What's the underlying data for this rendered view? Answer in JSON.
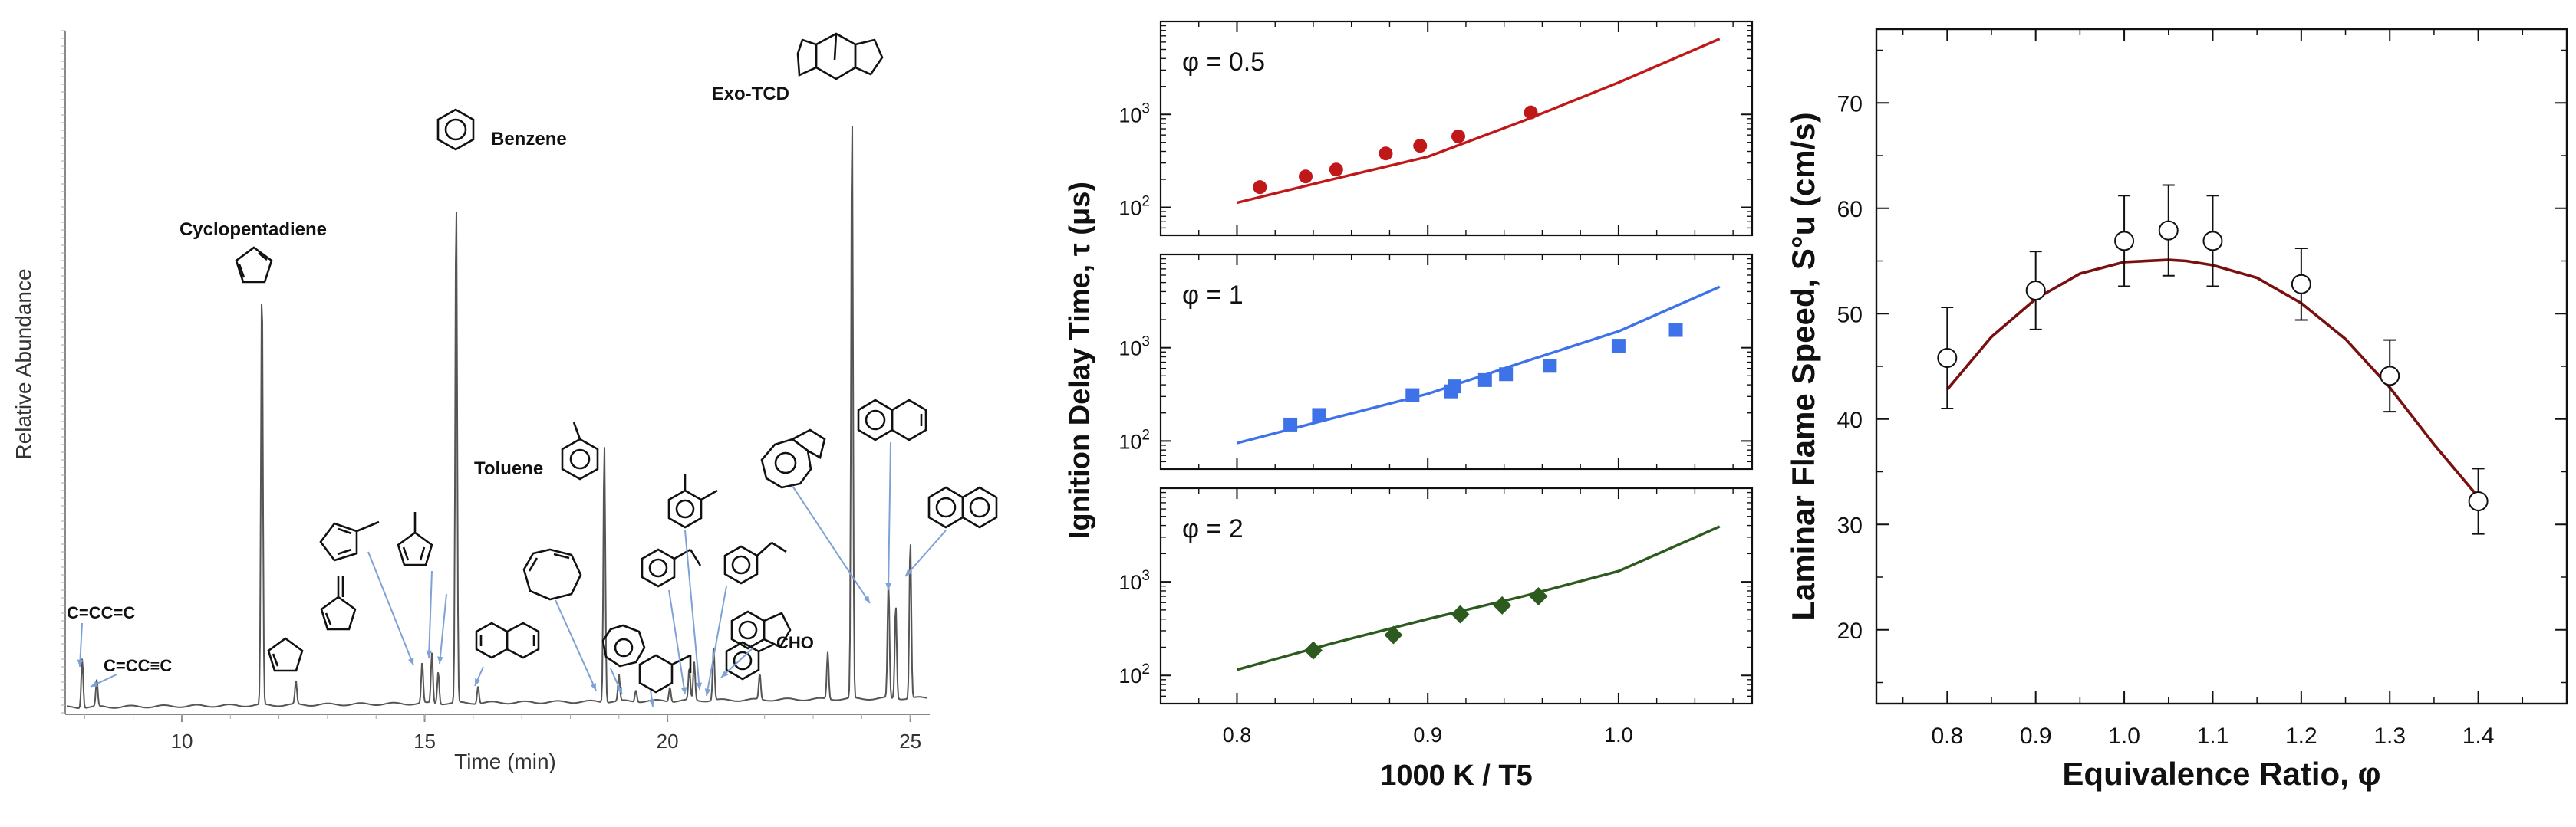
{
  "chart_data": [
    {
      "type": "line",
      "panel": "chromatogram",
      "xlabel": "Time (min)",
      "ylabel": "Relative Abundance",
      "xlim": [
        7.6,
        25.4
      ],
      "xticks": [
        10,
        15,
        20,
        25
      ],
      "peak_labels": [
        {
          "text": "C=CC=C",
          "x": 7.95,
          "y": 0.16
        },
        {
          "text": "C=CC≡C",
          "x": 8.25,
          "y": 0.045
        },
        {
          "text": "Cyclopentadiene",
          "x": 11.65,
          "y": 0.72
        },
        {
          "text": "Benzene",
          "x": 15.65,
          "y": 0.86
        },
        {
          "text": "Toluene",
          "x": 18.7,
          "y": 0.44
        },
        {
          "text": "Exo-TCD",
          "x": 23.8,
          "y": 1.0
        },
        {
          "text": "CHO",
          "x": 23.3,
          "y": 0.1
        }
      ],
      "peaks": [
        {
          "x": 7.95,
          "y": 0.085
        },
        {
          "x": 8.25,
          "y": 0.045
        },
        {
          "x": 11.65,
          "y": 0.72
        },
        {
          "x": 12.35,
          "y": 0.04
        },
        {
          "x": 14.95,
          "y": 0.07
        },
        {
          "x": 15.15,
          "y": 0.085
        },
        {
          "x": 15.28,
          "y": 0.055
        },
        {
          "x": 15.65,
          "y": 0.86
        },
        {
          "x": 16.1,
          "y": 0.03
        },
        {
          "x": 18.7,
          "y": 0.44
        },
        {
          "x": 19.0,
          "y": 0.045
        },
        {
          "x": 19.35,
          "y": 0.02
        },
        {
          "x": 20.05,
          "y": 0.025
        },
        {
          "x": 20.45,
          "y": 0.055
        },
        {
          "x": 20.55,
          "y": 0.065
        },
        {
          "x": 20.95,
          "y": 0.09
        },
        {
          "x": 21.9,
          "y": 0.045
        },
        {
          "x": 23.3,
          "y": 0.08
        },
        {
          "x": 23.8,
          "y": 1.0
        },
        {
          "x": 24.55,
          "y": 0.2
        },
        {
          "x": 24.7,
          "y": 0.16
        },
        {
          "x": 25.0,
          "y": 0.27
        }
      ]
    },
    {
      "type": "scatter",
      "panel": "ignition-delay",
      "xlabel": "1000 K / T5",
      "ylabel": "Ignition Delay Time, τ (μs)",
      "xlim": [
        0.76,
        1.07
      ],
      "xticks": [
        0.8,
        0.9,
        1.0
      ],
      "xtick_labels": [
        "0.8",
        "0.9",
        "1.0"
      ],
      "ylim": [
        50,
        10000
      ],
      "yscale": "log",
      "yticks": [
        100,
        1000
      ],
      "ytick_labels": [
        "10²",
        "10³"
      ],
      "series": [
        {
          "name": "φ = 0.5",
          "color": "#c01818",
          "marker": "circle",
          "x": [
            0.812,
            0.836,
            0.852,
            0.878,
            0.896,
            0.916,
            0.954
          ],
          "y": [
            165,
            215,
            255,
            380,
            460,
            580,
            1050
          ],
          "model_x": [
            0.8,
            0.85,
            0.9,
            0.95,
            1.0,
            1.053
          ],
          "model_y": [
            112,
            200,
            350,
            850,
            2200,
            6500
          ]
        },
        {
          "name": "φ = 1",
          "color": "#3d72e8",
          "marker": "square",
          "x": [
            0.828,
            0.843,
            0.892,
            0.912,
            0.914,
            0.93,
            0.941,
            0.964,
            1.0,
            1.03
          ],
          "y": [
            150,
            190,
            310,
            340,
            385,
            450,
            520,
            640,
            1050,
            1550
          ],
          "model_x": [
            0.8,
            0.85,
            0.9,
            0.95,
            1.0,
            1.053
          ],
          "model_y": [
            95,
            175,
            320,
            700,
            1500,
            4500
          ]
        },
        {
          "name": "φ = 2",
          "color": "#2d5a1e",
          "marker": "diamond",
          "x": [
            0.84,
            0.882,
            0.917,
            0.939,
            0.958
          ],
          "y": [
            185,
            270,
            450,
            560,
            700
          ],
          "model_x": [
            0.8,
            0.85,
            0.9,
            0.95,
            1.0,
            1.053
          ],
          "model_y": [
            115,
            220,
            400,
            700,
            1300,
            3900
          ]
        }
      ]
    },
    {
      "type": "scatter",
      "panel": "laminar-flame-speed",
      "xlabel": "Equivalence Ratio, φ",
      "ylabel": "Laminar Flame Speed, S°u (cm/s)",
      "xlim": [
        0.72,
        1.5
      ],
      "ylim": [
        13,
        77
      ],
      "xticks": [
        0.8,
        0.9,
        1.0,
        1.1,
        1.2,
        1.3,
        1.4
      ],
      "yticks": [
        20,
        30,
        40,
        50,
        60,
        70
      ],
      "series": [
        {
          "name": "",
          "color": "#ffffff",
          "marker": "open-circle",
          "x": [
            0.8,
            0.9,
            1.0,
            1.05,
            1.1,
            1.2,
            1.3,
            1.4
          ],
          "y": [
            45.8,
            52.2,
            56.9,
            57.9,
            56.9,
            52.8,
            44.1,
            32.2
          ],
          "err": [
            4.8,
            3.7,
            4.3,
            4.3,
            4.3,
            3.4,
            3.4,
            3.1
          ]
        },
        {
          "name": "",
          "color": "#7a0f0f",
          "marker": "none",
          "x": [
            0.8,
            0.85,
            0.9,
            0.95,
            1.0,
            1.05,
            1.07,
            1.1,
            1.15,
            1.2,
            1.25,
            1.3,
            1.35,
            1.4
          ],
          "y": [
            42.8,
            47.8,
            51.4,
            53.8,
            54.9,
            55.1,
            55.0,
            54.6,
            53.4,
            51.0,
            47.6,
            43.0,
            37.6,
            32.6
          ]
        }
      ]
    }
  ]
}
